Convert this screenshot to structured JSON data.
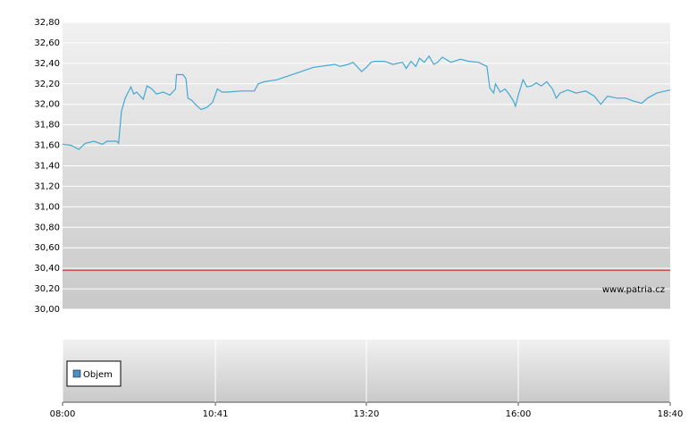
{
  "chart_data": [
    {
      "type": "line",
      "watermark": "www.patria.cz",
      "x": [
        480,
        489,
        497,
        504,
        513,
        522,
        527,
        537,
        539,
        542,
        546,
        552,
        555,
        558,
        565,
        569,
        574,
        579,
        586,
        593,
        599,
        600,
        607,
        610,
        612,
        616,
        621,
        626,
        632,
        638,
        643,
        648,
        654,
        668,
        682,
        686,
        692,
        706,
        725,
        744,
        767,
        772,
        781,
        786,
        791,
        795,
        800,
        805,
        809,
        819,
        828,
        838,
        842,
        847,
        852,
        856,
        861,
        866,
        871,
        875,
        880,
        889,
        899,
        908,
        918,
        927,
        930,
        934,
        936,
        941,
        946,
        951,
        955,
        957,
        960,
        965,
        969,
        974,
        979,
        984,
        990,
        996,
        1000,
        1004,
        1012,
        1021,
        1031,
        1040,
        1047,
        1054,
        1064,
        1073,
        1082,
        1090,
        1096,
        1106,
        1115,
        1120
      ],
      "series": [
        {
          "color": "#41a9d3",
          "values": [
            31.61,
            31.6,
            31.56,
            31.62,
            31.64,
            31.61,
            31.64,
            31.64,
            31.62,
            31.93,
            32.06,
            32.17,
            32.1,
            32.12,
            32.05,
            32.18,
            32.15,
            32.1,
            32.12,
            32.09,
            32.15,
            32.29,
            32.29,
            32.25,
            32.06,
            32.04,
            31.99,
            31.95,
            31.97,
            32.02,
            32.15,
            32.12,
            32.12,
            32.13,
            32.13,
            32.2,
            32.22,
            32.24,
            32.3,
            32.36,
            32.39,
            32.37,
            32.39,
            32.41,
            32.36,
            32.32,
            32.36,
            32.41,
            32.42,
            32.42,
            32.39,
            32.41,
            32.35,
            32.42,
            32.37,
            32.45,
            32.41,
            32.47,
            32.39,
            32.41,
            32.46,
            32.41,
            32.44,
            32.42,
            32.41,
            32.37,
            32.16,
            32.11,
            32.2,
            32.12,
            32.15,
            32.09,
            32.03,
            31.98,
            32.09,
            32.24,
            32.17,
            32.18,
            32.21,
            32.18,
            32.22,
            32.15,
            32.06,
            32.11,
            32.14,
            32.11,
            32.13,
            32.08,
            32.0,
            32.08,
            32.06,
            32.06,
            32.03,
            32.01,
            32.06,
            32.11,
            32.13,
            32.14
          ]
        }
      ],
      "reference_line": {
        "value": 30.38,
        "color": "#c0504d"
      },
      "xlim": [
        480,
        1120
      ],
      "ylim": [
        30.0,
        32.8
      ],
      "yticks": [
        {
          "value": 30.0,
          "label": "30,00"
        },
        {
          "value": 30.2,
          "label": "30,20"
        },
        {
          "value": 30.4,
          "label": "30,40"
        },
        {
          "value": 30.6,
          "label": "30,60"
        },
        {
          "value": 30.8,
          "label": "30,80"
        },
        {
          "value": 31.0,
          "label": "31,00"
        },
        {
          "value": 31.2,
          "label": "31,20"
        },
        {
          "value": 31.4,
          "label": "31,40"
        },
        {
          "value": 31.6,
          "label": "31,60"
        },
        {
          "value": 31.8,
          "label": "31,80"
        },
        {
          "value": 32.0,
          "label": "32,00"
        },
        {
          "value": 32.2,
          "label": "32,20"
        },
        {
          "value": 32.4,
          "label": "32,40"
        },
        {
          "value": 32.6,
          "label": "32,60"
        },
        {
          "value": 32.8,
          "label": "32,80"
        }
      ],
      "grid": true
    },
    {
      "type": "bar",
      "series": [
        {
          "name": "Objem",
          "color": "#4a90c4",
          "values": []
        }
      ],
      "xlim": [
        480,
        1120
      ],
      "xticks": [
        {
          "value": 480,
          "label": "08:00"
        },
        {
          "value": 641,
          "label": "10:41"
        },
        {
          "value": 800,
          "label": "13:20"
        },
        {
          "value": 960,
          "label": "16:00"
        },
        {
          "value": 1120,
          "label": "18:40"
        }
      ],
      "grid": true,
      "legend": "top-left"
    }
  ]
}
